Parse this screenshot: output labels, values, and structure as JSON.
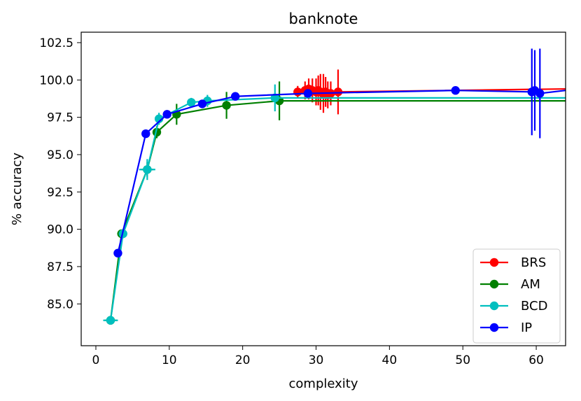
{
  "chart_data": {
    "type": "line",
    "title": "banknote",
    "xlabel": "complexity",
    "ylabel": "% accuracy",
    "xlim": [
      -2,
      64
    ],
    "ylim": [
      82.2,
      103.2
    ],
    "xticks": [
      0,
      10,
      20,
      30,
      40,
      50,
      60
    ],
    "yticks": [
      85.0,
      87.5,
      90.0,
      92.5,
      95.0,
      97.5,
      100.0,
      102.5
    ],
    "xtick_labels": [
      "0",
      "10",
      "20",
      "30",
      "40",
      "50",
      "60"
    ],
    "ytick_labels": [
      "85.0",
      "87.5",
      "90.0",
      "92.5",
      "95.0",
      "97.5",
      "100.0",
      "102.5"
    ],
    "grid": false,
    "legend_position": "lower-right",
    "series": [
      {
        "name": "BRS",
        "color": "#ff0000",
        "points": [
          {
            "x": 27.5,
            "y": 99.2,
            "yerr": 0.4
          },
          {
            "x": 28.5,
            "y": 99.3,
            "yerr": 0.6
          },
          {
            "x": 29.0,
            "y": 99.4,
            "yerr": 0.7
          },
          {
            "x": 29.5,
            "y": 99.3,
            "yerr": 0.8
          },
          {
            "x": 30.0,
            "y": 99.2,
            "yerr": 0.9
          },
          {
            "x": 30.3,
            "y": 99.3,
            "yerr": 1.0
          },
          {
            "x": 30.6,
            "y": 99.2,
            "yerr": 1.2
          },
          {
            "x": 31.0,
            "y": 99.1,
            "yerr": 1.3
          },
          {
            "x": 31.3,
            "y": 99.2,
            "yerr": 1.0
          },
          {
            "x": 31.6,
            "y": 99.0,
            "yerr": 0.9
          },
          {
            "x": 32.0,
            "y": 99.1,
            "yerr": 0.8
          },
          {
            "x": 33.0,
            "y": 99.2,
            "yerr": 1.5
          },
          {
            "x": 64.0,
            "y": 99.4,
            "yerr": 0
          }
        ]
      },
      {
        "name": "AM",
        "color": "#008000",
        "points": [
          {
            "x": 2.0,
            "y": 83.9,
            "yerr": 0,
            "xerr": 0.8
          },
          {
            "x": 3.5,
            "y": 89.7,
            "yerr": 0
          },
          {
            "x": 7.0,
            "y": 94.0,
            "yerr": 0.5,
            "xerr": 0.8
          },
          {
            "x": 8.3,
            "y": 96.5,
            "yerr": 0.4
          },
          {
            "x": 11.0,
            "y": 97.7,
            "yerr": 0.7
          },
          {
            "x": 17.8,
            "y": 98.3,
            "yerr": 0.9
          },
          {
            "x": 25.0,
            "y": 98.6,
            "yerr": 1.3
          },
          {
            "x": 64.0,
            "y": 98.6,
            "yerr": 0
          }
        ]
      },
      {
        "name": "BCD",
        "color": "#00bfbf",
        "points": [
          {
            "x": 2.0,
            "y": 83.9,
            "yerr": 0,
            "xerr": 1.0
          },
          {
            "x": 3.7,
            "y": 89.7,
            "yerr": 0.3
          },
          {
            "x": 7.0,
            "y": 94.0,
            "yerr": 0.7,
            "xerr": 1.1
          },
          {
            "x": 8.6,
            "y": 97.4,
            "yerr": 0.4
          },
          {
            "x": 13.0,
            "y": 98.5,
            "yerr": 0.3
          },
          {
            "x": 15.2,
            "y": 98.6,
            "yerr": 0.4
          },
          {
            "x": 24.4,
            "y": 98.8,
            "yerr": 0.9
          },
          {
            "x": 64.0,
            "y": 98.8,
            "yerr": 0
          }
        ]
      },
      {
        "name": "IP",
        "color": "#0000ff",
        "points": [
          {
            "x": 3.0,
            "y": 88.4,
            "yerr": 0
          },
          {
            "x": 6.8,
            "y": 96.4,
            "yerr": 0
          },
          {
            "x": 9.7,
            "y": 97.7,
            "yerr": 0
          },
          {
            "x": 14.5,
            "y": 98.4,
            "yerr": 0
          },
          {
            "x": 19.0,
            "y": 98.9,
            "yerr": 0
          },
          {
            "x": 28.9,
            "y": 99.1,
            "yerr": 0
          },
          {
            "x": 49.0,
            "y": 99.3,
            "yerr": 0
          },
          {
            "x": 59.4,
            "y": 99.2,
            "yerr": 2.9
          },
          {
            "x": 59.8,
            "y": 99.3,
            "yerr": 2.7
          },
          {
            "x": 60.5,
            "y": 99.1,
            "yerr": 3.0
          },
          {
            "x": 64.0,
            "y": 99.3,
            "yerr": 0
          }
        ]
      }
    ]
  }
}
